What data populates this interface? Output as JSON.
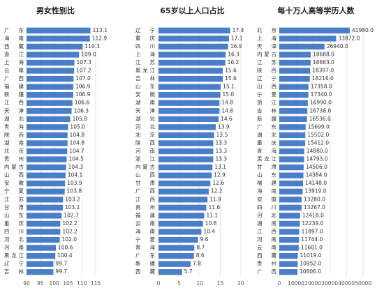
{
  "chart_data": [
    {
      "type": "bar",
      "title": "男女性别比",
      "color": "#4a7ec7",
      "grid": true,
      "categories": [
        "广东",
        "海南",
        "西藏",
        "浙江",
        "上海",
        "云南",
        "广西",
        "福建",
        "新疆",
        "江西",
        "天津",
        "湖北",
        "青海",
        "陕西",
        "湖南",
        "北京",
        "贵州",
        "内蒙古",
        "山西",
        "安徽",
        "宁夏",
        "江苏",
        "甘肃",
        "山东",
        "重庆",
        "四川",
        "河北",
        "河南",
        "黑龙江",
        "辽宁",
        "吉林"
      ],
      "values": [
        113.1,
        112.9,
        110.3,
        109.0,
        107.3,
        107.2,
        107.0,
        106.9,
        106.9,
        106.6,
        106.3,
        105.8,
        105.0,
        104.8,
        104.8,
        104.7,
        104.5,
        104.3,
        104.1,
        103.9,
        103.8,
        103.2,
        103.1,
        102.7,
        102.2,
        102.2,
        102.0,
        100.6,
        100.4,
        99.7,
        99.7
      ],
      "value_labels": [
        "113.1",
        "112.9",
        "110.3",
        "109.0",
        "107.3",
        "107.2",
        "107.0",
        "106.9",
        "106.9",
        "106.6",
        "106.3",
        "105.8",
        "105.0",
        "104.8",
        "104.8",
        "104.7",
        "104.5",
        "104.3",
        "104.1",
        "103.9",
        "103.8",
        "103.2",
        "103.1",
        "102.7",
        "102.2",
        "102.2",
        "102.0",
        "100.6",
        "100.4",
        "99.7",
        "99.7"
      ],
      "xlim": [
        90,
        116
      ],
      "xticks": [
        90,
        95,
        100,
        105,
        110,
        115
      ]
    },
    {
      "type": "bar",
      "title": "65岁以上人口占比",
      "color": "#4a7ec7",
      "grid": true,
      "categories": [
        "辽宁",
        "重庆",
        "四川",
        "上海",
        "江苏",
        "黑龙江",
        "吉林",
        "山东",
        "安徽",
        "湖南",
        "天津",
        "湖北",
        "河北",
        "北京",
        "陕西",
        "河南",
        "浙江",
        "内蒙古",
        "山西",
        "甘肃",
        "广西",
        "江西",
        "贵州",
        "福建",
        "云南",
        "海南",
        "宁夏",
        "青海",
        "广东",
        "新疆",
        "西藏"
      ],
      "values": [
        17.4,
        17.1,
        16.9,
        16.3,
        16.2,
        15.6,
        15.6,
        15.1,
        15.0,
        14.8,
        14.8,
        14.6,
        13.9,
        13.5,
        13.3,
        13.3,
        13.3,
        13.1,
        12.9,
        12.6,
        12.2,
        11.9,
        11.6,
        11.1,
        10.8,
        10.4,
        9.6,
        8.7,
        8.6,
        7.8,
        5.7
      ],
      "value_labels": [
        "17.4",
        "17.1",
        "16.9",
        "16.3",
        "16.2",
        "15.6",
        "15.6",
        "15.1",
        "15.0",
        "14.8",
        "14.8",
        "14.6",
        "13.9",
        "13.5",
        "13.3",
        "13.3",
        "13.3",
        "13.1",
        "12.9",
        "12.6",
        "12.2",
        "11.9",
        "11.6",
        "11.1",
        "10.8",
        "10.4",
        "9.6",
        "8.7",
        "8.6",
        "7.8",
        "5.7"
      ],
      "xlim": [
        0,
        20
      ],
      "xticks": [
        0,
        5,
        10,
        15,
        20
      ]
    },
    {
      "type": "bar",
      "title": "每十万人高等学历人数",
      "color": "#4a7ec7",
      "grid": true,
      "categories": [
        "北京",
        "上海",
        "天津",
        "内蒙古",
        "江苏",
        "陕西",
        "辽宁",
        "山西",
        "宁夏",
        "浙江",
        "吉林",
        "新疆",
        "广东",
        "湖北",
        "重庆",
        "青海",
        "黑龙江",
        "甘肃",
        "山东",
        "福建",
        "海南",
        "安徽",
        "四川",
        "河北",
        "湖南",
        "江西",
        "河南",
        "云南",
        "西藏",
        "贵州",
        "广西"
      ],
      "values": [
        41980,
        33872,
        26940,
        18688,
        18663,
        18397,
        18216,
        17358,
        17340,
        16990,
        16738,
        16536,
        15699,
        15502,
        15412,
        14880,
        14793,
        14506,
        14384,
        14148,
        13919,
        13280,
        13267,
        12418,
        12239,
        11897,
        11744,
        11601,
        11019,
        10952,
        10806
      ],
      "value_labels": [
        "41980.0",
        "33872.0",
        "26940.0",
        "18688.0",
        "18663.0",
        "18397.0",
        "18216.0",
        "17358.0",
        "17340.0",
        "16990.0",
        "16738.0",
        "16536.0",
        "15699.0",
        "15502.0",
        "15412.0",
        "14880.0",
        "14793.0",
        "14506.0",
        "14384.0",
        "14148.0",
        "13919.0",
        "13280.0",
        "13267.0",
        "12418.0",
        "12239.0",
        "11897.0",
        "11744.0",
        "11601.0",
        "11019.0",
        "10952.0",
        "10806.0"
      ],
      "xlim": [
        0,
        52000
      ],
      "xticks": [
        0,
        10000,
        20000,
        30000,
        40000,
        50000
      ]
    }
  ]
}
